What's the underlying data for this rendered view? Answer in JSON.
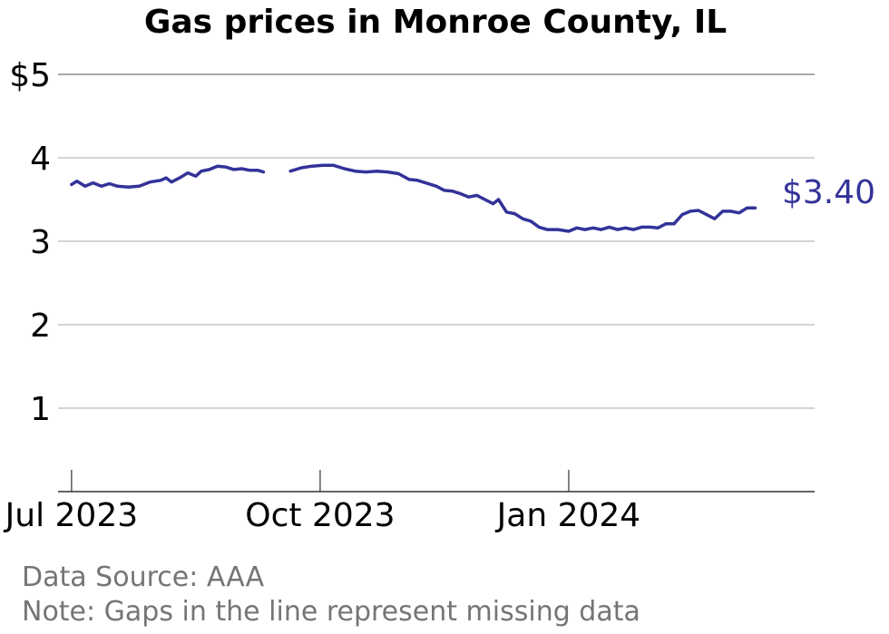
{
  "chart_data": {
    "type": "line",
    "title": "Gas prices in Monroe County, IL",
    "xlabel": "",
    "ylabel": "",
    "ylim": [
      0,
      5
    ],
    "xlim": [
      "2023-06-26",
      "2024-04-01"
    ],
    "y_ticks": [
      {
        "value": 1,
        "label": "1"
      },
      {
        "value": 2,
        "label": "2"
      },
      {
        "value": 3,
        "label": "3"
      },
      {
        "value": 4,
        "label": "4"
      },
      {
        "value": 5,
        "label": "$5"
      }
    ],
    "x_ticks": [
      {
        "date": "2023-07-01",
        "label": "Jul 2023"
      },
      {
        "date": "2023-10-01",
        "label": "Oct 2023"
      },
      {
        "date": "2024-01-01",
        "label": "Jan 2024"
      }
    ],
    "grid": "horizontal",
    "line_color": "#33339a",
    "end_label": "$3.40",
    "series": [
      {
        "segments": [
          [
            {
              "x": "2023-07-01",
              "y": 3.68
            },
            {
              "x": "2023-07-03",
              "y": 3.72
            },
            {
              "x": "2023-07-06",
              "y": 3.66
            },
            {
              "x": "2023-07-09",
              "y": 3.7
            },
            {
              "x": "2023-07-12",
              "y": 3.66
            },
            {
              "x": "2023-07-15",
              "y": 3.69
            },
            {
              "x": "2023-07-18",
              "y": 3.66
            },
            {
              "x": "2023-07-22",
              "y": 3.65
            },
            {
              "x": "2023-07-26",
              "y": 3.66
            },
            {
              "x": "2023-07-30",
              "y": 3.71
            },
            {
              "x": "2023-08-03",
              "y": 3.73
            },
            {
              "x": "2023-08-05",
              "y": 3.76
            },
            {
              "x": "2023-08-07",
              "y": 3.71
            },
            {
              "x": "2023-08-10",
              "y": 3.76
            },
            {
              "x": "2023-08-13",
              "y": 3.82
            },
            {
              "x": "2023-08-16",
              "y": 3.78
            },
            {
              "x": "2023-08-18",
              "y": 3.84
            },
            {
              "x": "2023-08-21",
              "y": 3.86
            },
            {
              "x": "2023-08-24",
              "y": 3.9
            },
            {
              "x": "2023-08-27",
              "y": 3.89
            },
            {
              "x": "2023-08-30",
              "y": 3.86
            },
            {
              "x": "2023-09-02",
              "y": 3.87
            },
            {
              "x": "2023-09-05",
              "y": 3.85
            },
            {
              "x": "2023-09-08",
              "y": 3.85
            },
            {
              "x": "2023-09-10",
              "y": 3.83
            }
          ],
          [
            {
              "x": "2023-09-20",
              "y": 3.84
            },
            {
              "x": "2023-09-24",
              "y": 3.88
            },
            {
              "x": "2023-09-28",
              "y": 3.9
            },
            {
              "x": "2023-10-02",
              "y": 3.91
            },
            {
              "x": "2023-10-06",
              "y": 3.91
            },
            {
              "x": "2023-10-10",
              "y": 3.87
            },
            {
              "x": "2023-10-14",
              "y": 3.84
            },
            {
              "x": "2023-10-18",
              "y": 3.83
            },
            {
              "x": "2023-10-22",
              "y": 3.84
            },
            {
              "x": "2023-10-26",
              "y": 3.83
            },
            {
              "x": "2023-10-30",
              "y": 3.81
            },
            {
              "x": "2023-11-03",
              "y": 3.74
            },
            {
              "x": "2023-11-06",
              "y": 3.73
            },
            {
              "x": "2023-11-09",
              "y": 3.7
            },
            {
              "x": "2023-11-13",
              "y": 3.66
            },
            {
              "x": "2023-11-16",
              "y": 3.61
            },
            {
              "x": "2023-11-19",
              "y": 3.6
            },
            {
              "x": "2023-11-22",
              "y": 3.57
            },
            {
              "x": "2023-11-25",
              "y": 3.53
            },
            {
              "x": "2023-11-28",
              "y": 3.55
            },
            {
              "x": "2023-12-01",
              "y": 3.5
            },
            {
              "x": "2023-12-04",
              "y": 3.45
            },
            {
              "x": "2023-12-06",
              "y": 3.5
            },
            {
              "x": "2023-12-09",
              "y": 3.35
            },
            {
              "x": "2023-12-12",
              "y": 3.33
            },
            {
              "x": "2023-12-15",
              "y": 3.27
            },
            {
              "x": "2023-12-18",
              "y": 3.24
            },
            {
              "x": "2023-12-21",
              "y": 3.17
            },
            {
              "x": "2023-12-24",
              "y": 3.14
            },
            {
              "x": "2023-12-28",
              "y": 3.14
            },
            {
              "x": "2024-01-01",
              "y": 3.12
            },
            {
              "x": "2024-01-04",
              "y": 3.16
            },
            {
              "x": "2024-01-07",
              "y": 3.14
            },
            {
              "x": "2024-01-10",
              "y": 3.16
            },
            {
              "x": "2024-01-13",
              "y": 3.14
            },
            {
              "x": "2024-01-16",
              "y": 3.17
            },
            {
              "x": "2024-01-19",
              "y": 3.14
            },
            {
              "x": "2024-01-22",
              "y": 3.16
            },
            {
              "x": "2024-01-25",
              "y": 3.14
            },
            {
              "x": "2024-01-28",
              "y": 3.17
            },
            {
              "x": "2024-01-31",
              "y": 3.17
            },
            {
              "x": "2024-02-03",
              "y": 3.16
            },
            {
              "x": "2024-02-06",
              "y": 3.21
            },
            {
              "x": "2024-02-09",
              "y": 3.21
            },
            {
              "x": "2024-02-12",
              "y": 3.32
            },
            {
              "x": "2024-02-15",
              "y": 3.36
            },
            {
              "x": "2024-02-18",
              "y": 3.37
            },
            {
              "x": "2024-02-21",
              "y": 3.32
            },
            {
              "x": "2024-02-24",
              "y": 3.27
            },
            {
              "x": "2024-02-27",
              "y": 3.36
            },
            {
              "x": "2024-03-01",
              "y": 3.36
            },
            {
              "x": "2024-03-04",
              "y": 3.34
            },
            {
              "x": "2024-03-07",
              "y": 3.4
            },
            {
              "x": "2024-03-10",
              "y": 3.4
            }
          ]
        ]
      }
    ]
  },
  "footer": {
    "source": "Data Source: AAA",
    "note": "Note: Gaps in the line represent missing data"
  }
}
